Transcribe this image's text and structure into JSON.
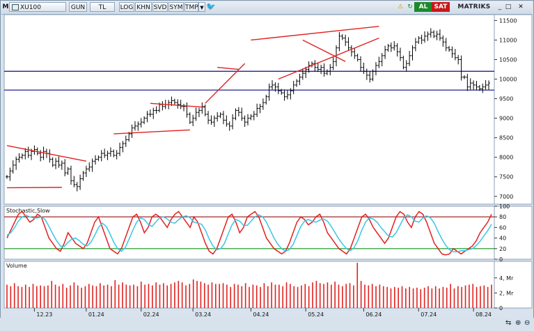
{
  "toolbar": {
    "menu_letter": "M",
    "symbol": "XU100",
    "buttons": [
      "GUN",
      "TL",
      "LOG",
      "KHN",
      "SVD",
      "SYM",
      "TMP"
    ],
    "al_label": "AL",
    "sat_label": "SAT",
    "c_label": "C",
    "brand": "MATRIKS",
    "al_color": "#1c8a2c",
    "sat_color": "#c81818"
  },
  "colors": {
    "price_bar": "#000000",
    "trendline": "#e0201e",
    "support_line": "#22228c",
    "stoch_k": "#e0201e",
    "stoch_d": "#38c6e6",
    "stoch_upper": "#9a1010",
    "stoch_lower": "#10901c",
    "volume": "#e0201e"
  },
  "chart_data": [
    {
      "type": "ohlc",
      "panel": "price",
      "y_ticks": [
        "11500",
        "11000",
        "10500",
        "10000",
        "9500",
        "9000",
        "8500",
        "8000",
        "7500",
        "7000"
      ],
      "ylim": [
        6800,
        11650
      ],
      "x_tick_labels": [
        "12.23",
        "01.24",
        "02.24",
        "03.24",
        "04.24",
        "05.24",
        "06.24",
        "07.24",
        "08.24"
      ],
      "closes": [
        7500,
        7650,
        7800,
        7950,
        8000,
        8050,
        8150,
        8050,
        8150,
        8200,
        8100,
        8000,
        8150,
        8100,
        7950,
        7800,
        7900,
        7800,
        7850,
        7600,
        7700,
        7400,
        7300,
        7250,
        7450,
        7600,
        7700,
        7750,
        7900,
        7950,
        8000,
        8100,
        8050,
        8100,
        8150,
        8050,
        8100,
        8250,
        8350,
        8450,
        8600,
        8750,
        8800,
        8850,
        8900,
        9000,
        9100,
        9100,
        9200,
        9200,
        9350,
        9300,
        9350,
        9400,
        9450,
        9400,
        9350,
        9300,
        9300,
        9100,
        8900,
        9000,
        9150,
        9200,
        9300,
        9100,
        8950,
        8900,
        9000,
        9050,
        9100,
        8950,
        8850,
        8800,
        9000,
        9200,
        9150,
        9000,
        8900,
        9000,
        9050,
        9100,
        9250,
        9300,
        9400,
        9550,
        9800,
        9850,
        9800,
        9700,
        9650,
        9550,
        9600,
        9700,
        9850,
        9950,
        10050,
        10150,
        10250,
        10350,
        10400,
        10300,
        10250,
        10300,
        10150,
        10200,
        10300,
        10450,
        10800,
        11100,
        11050,
        10950,
        10800,
        10700,
        10600,
        10500,
        10300,
        10200,
        10100,
        10000,
        10200,
        10350,
        10450,
        10600,
        10750,
        10850,
        10800,
        10850,
        10700,
        10550,
        10300,
        10400,
        10600,
        10800,
        10950,
        11050,
        11000,
        11100,
        11150,
        11200,
        11100,
        11150,
        11050,
        10950,
        10800,
        10750,
        10650,
        10550,
        10500,
        10050,
        10050,
        9800,
        9900,
        9850,
        9800,
        9750,
        9800,
        9850,
        9900
      ],
      "trendlines": [
        {
          "x1": 0,
          "y1": 8300,
          "x2": 26,
          "y2": 7900
        },
        {
          "x1": 0,
          "y1": 7220,
          "x2": 18,
          "y2": 7230
        },
        {
          "x1": 35,
          "y1": 8600,
          "x2": 60,
          "y2": 8700
        },
        {
          "x1": 47,
          "y1": 9380,
          "x2": 65,
          "y2": 9280
        },
        {
          "x1": 65,
          "y1": 9380,
          "x2": 78,
          "y2": 10400
        },
        {
          "x1": 69,
          "y1": 10300,
          "x2": 76,
          "y2": 10250
        },
        {
          "x1": 80,
          "y1": 11000,
          "x2": 122,
          "y2": 11350
        },
        {
          "x1": 89,
          "y1": 10000,
          "x2": 122,
          "y2": 11050
        },
        {
          "x1": 97,
          "y1": 11000,
          "x2": 111,
          "y2": 10450
        }
      ],
      "hlines": [
        10200,
        9720
      ]
    },
    {
      "type": "line",
      "panel": "stochastic",
      "title": "Stochastic,Slow",
      "y_ticks": [
        "100",
        "80",
        "60",
        "40",
        "20",
        "0"
      ],
      "ylim": [
        0,
        100
      ],
      "levels": [
        80,
        20
      ],
      "series": [
        {
          "values": [
            40,
            55,
            70,
            85,
            90,
            80,
            70,
            75,
            85,
            80,
            60,
            40,
            30,
            20,
            15,
            30,
            50,
            40,
            30,
            25,
            20,
            30,
            50,
            70,
            80,
            60,
            40,
            20,
            15,
            10,
            20,
            40,
            60,
            80,
            85,
            70,
            50,
            60,
            80,
            85,
            80,
            70,
            60,
            75,
            85,
            90,
            80,
            70,
            60,
            80,
            70,
            50,
            30,
            15,
            10,
            20,
            40,
            60,
            80,
            85,
            70,
            50,
            60,
            80,
            85,
            90,
            80,
            60,
            40,
            30,
            20,
            15,
            10,
            15,
            30,
            50,
            70,
            80,
            75,
            65,
            70,
            80,
            85,
            70,
            50,
            40,
            30,
            20,
            15,
            10,
            20,
            40,
            60,
            80,
            85,
            75,
            60,
            50,
            40,
            30,
            40,
            60,
            80,
            90,
            85,
            70,
            60,
            80,
            90,
            85,
            70,
            50,
            30,
            20,
            10,
            8,
            10,
            20,
            15,
            10,
            15,
            20,
            25,
            35,
            50,
            60,
            70,
            85
          ]
        },
        {
          "values": [
            45,
            50,
            60,
            72,
            80,
            83,
            80,
            78,
            78,
            80,
            75,
            62,
            48,
            35,
            25,
            24,
            32,
            38,
            40,
            35,
            28,
            25,
            32,
            45,
            60,
            68,
            62,
            48,
            32,
            20,
            15,
            22,
            38,
            55,
            70,
            78,
            75,
            66,
            62,
            70,
            78,
            80,
            76,
            70,
            68,
            75,
            80,
            82,
            78,
            70,
            68,
            66,
            55,
            38,
            25,
            18,
            20,
            30,
            48,
            65,
            75,
            72,
            64,
            64,
            72,
            80,
            84,
            80,
            70,
            55,
            40,
            28,
            20,
            15,
            18,
            28,
            45,
            62,
            72,
            75,
            72,
            70,
            74,
            76,
            72,
            62,
            50,
            38,
            28,
            20,
            16,
            22,
            36,
            55,
            70,
            78,
            76,
            70,
            60,
            52,
            44,
            42,
            50,
            64,
            78,
            84,
            80,
            72,
            70,
            78,
            82,
            78,
            68,
            52,
            38,
            26,
            18,
            14,
            14,
            16,
            16,
            18,
            20,
            26,
            34,
            44,
            54,
            66
          ]
        }
      ]
    },
    {
      "type": "bar",
      "panel": "volume",
      "title": "Volume",
      "y_ticks": [
        "4, Mr",
        "2, Mr",
        "0"
      ],
      "ylim": [
        0,
        6.2
      ],
      "values": [
        3.1,
        2.9,
        3.3,
        2.9,
        2.8,
        3.1,
        2.8,
        3.2,
        2.9,
        3.0,
        2.9,
        3.0,
        3.6,
        3.1,
        2.9,
        3.2,
        2.7,
        3.0,
        3.4,
        3.0,
        2.7,
        2.9,
        3.2,
        3.0,
        2.9,
        3.3,
        3.0,
        3.1,
        2.9,
        3.7,
        3.1,
        3.4,
        3.1,
        3.0,
        3.1,
        2.9,
        3.5,
        3.1,
        3.2,
        3.0,
        3.4,
        3.1,
        3.3,
        3.0,
        3.2,
        3.4,
        3.6,
        3.4,
        3.0,
        3.2,
        3.8,
        3.6,
        3.5,
        3.3,
        3.1,
        3.4,
        3.2,
        3.2,
        3.3,
        3.1,
        2.8,
        3.2,
        3.1,
        2.9,
        3.3,
        2.8,
        3.1,
        3.0,
        2.8,
        3.3,
        2.9,
        3.4,
        3.1,
        3.1,
        2.9,
        3.4,
        3.2,
        2.9,
        2.8,
        3.0,
        3.2,
        2.9,
        3.4,
        3.6,
        3.3,
        3.2,
        3.4,
        3.1,
        3.5,
        3.1,
        2.9,
        3.2,
        3.3,
        3.0,
        6.0,
        3.6,
        3.1,
        3.0,
        3.2,
        2.9,
        3.1,
        2.9,
        2.8,
        2.6,
        2.8,
        2.7,
        2.9,
        2.6,
        2.8,
        2.6,
        2.7,
        2.5,
        2.7,
        2.9,
        2.6,
        2.9,
        2.6,
        2.8,
        2.7,
        3.2,
        2.6,
        2.9,
        2.8,
        3.0,
        3.1,
        3.2,
        2.8,
        2.9,
        3.0,
        2.8,
        3.1
      ]
    }
  ]
}
